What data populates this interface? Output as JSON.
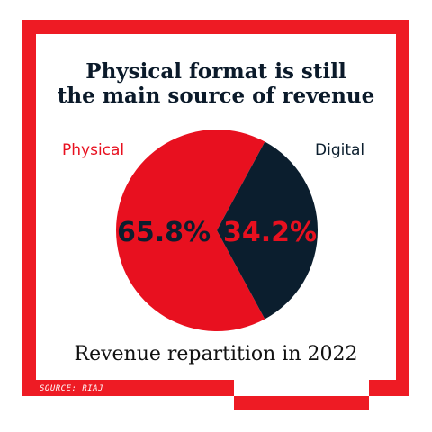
{
  "colors": {
    "accent": "#e8101f",
    "dark": "#0b1e2e",
    "frame": "#ee1b24",
    "text": "#111111"
  },
  "title_line1": "Physical format is still",
  "title_line2": "the main source of revenue",
  "subtitle": "Revenue repartition in 2022",
  "source": "SOURCE: RIAJ",
  "chart_data": {
    "type": "pie",
    "labels": [
      "Physical",
      "Digital"
    ],
    "values": [
      65.8,
      34.2
    ],
    "value_labels": [
      "65.8%",
      "34.2%"
    ],
    "colors": [
      "#e8101f",
      "#0b1e2e"
    ],
    "title": "Physical format is still the main source of revenue",
    "caption": "Revenue repartition in 2022",
    "legend": "labels placed top-left and top-right of pie"
  }
}
